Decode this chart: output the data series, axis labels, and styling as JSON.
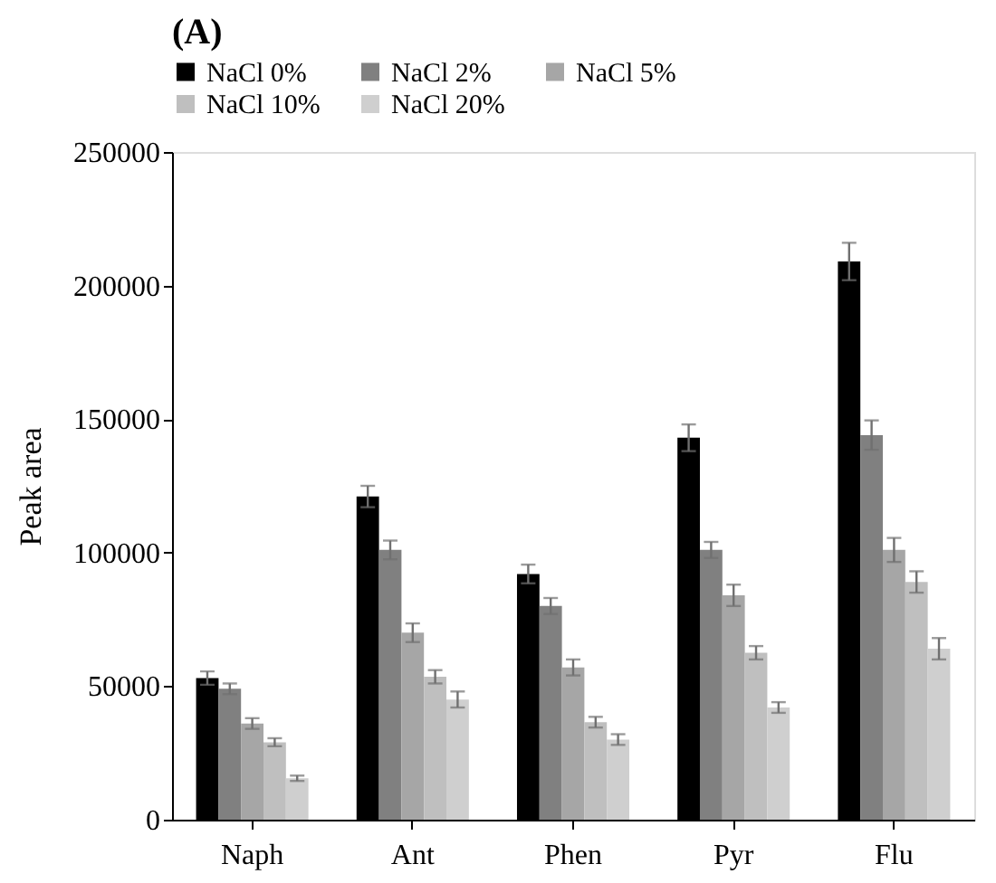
{
  "chart_data": {
    "type": "bar",
    "title": "(A)",
    "ylabel": "Peak area",
    "categories": [
      "Naph",
      "Ant",
      "Phen",
      "Pyr",
      "Flu"
    ],
    "series": [
      {
        "name": "NaCl 0%",
        "color": "#000000",
        "values": [
          53000,
          121000,
          92000,
          143000,
          209000
        ],
        "errors": [
          2500,
          4000,
          3500,
          5000,
          7000
        ]
      },
      {
        "name": "NaCl 2%",
        "color": "#808080",
        "values": [
          49000,
          101000,
          80000,
          101000,
          144000
        ],
        "errors": [
          2000,
          3500,
          3000,
          3000,
          5500
        ]
      },
      {
        "name": "NaCl 5%",
        "color": "#a6a6a6",
        "values": [
          36000,
          70000,
          57000,
          84000,
          101000
        ],
        "errors": [
          2000,
          3500,
          3000,
          4000,
          4500
        ]
      },
      {
        "name": "NaCl 10%",
        "color": "#bfbfbf",
        "values": [
          29000,
          53500,
          36500,
          62500,
          89000
        ],
        "errors": [
          1500,
          2500,
          2000,
          2500,
          4000
        ]
      },
      {
        "name": "NaCl 20%",
        "color": "#cfcfcf",
        "values": [
          15500,
          45000,
          30000,
          42000,
          64000
        ],
        "errors": [
          1000,
          3000,
          2000,
          2000,
          4000
        ]
      }
    ],
    "ylim": [
      0,
      250000
    ],
    "yticks": [
      0,
      50000,
      100000,
      150000,
      200000,
      250000
    ],
    "grid": false,
    "legend": "top"
  }
}
